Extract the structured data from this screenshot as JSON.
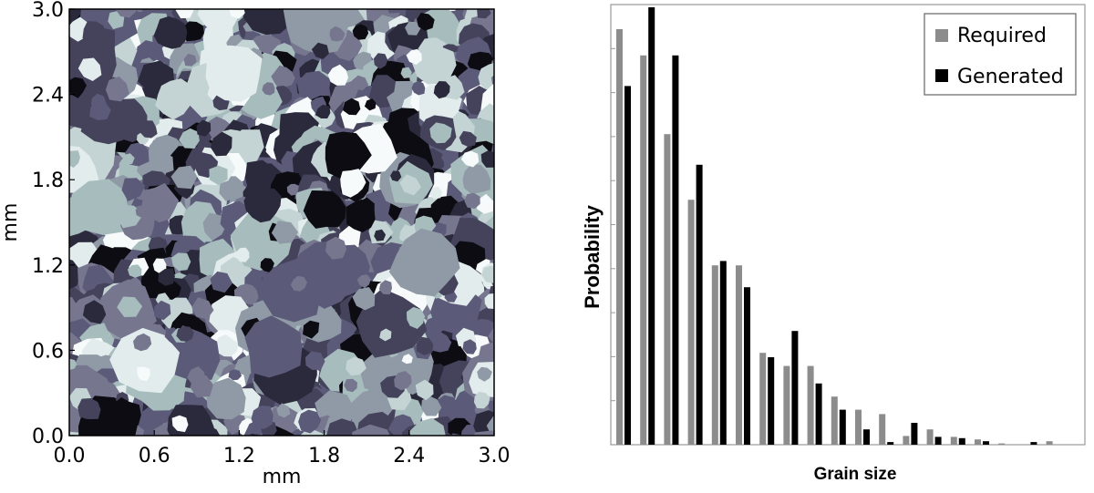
{
  "chart_data": [
    {
      "type": "heatmap",
      "description_source": "grain microstructure map",
      "xlabel": "mm",
      "ylabel": "mm",
      "xlim": [
        0.0,
        3.0
      ],
      "ylim": [
        0.0,
        3.0
      ],
      "xticks": [
        "0.0",
        "0.6",
        "1.2",
        "1.8",
        "2.4",
        "3.0"
      ],
      "yticks": [
        "0.0",
        "0.6",
        "1.2",
        "1.8",
        "2.4",
        "3.0"
      ],
      "palette": [
        "#0c0c12",
        "#2b2a3c",
        "#45435b",
        "#5b5a78",
        "#76768f",
        "#8f9aa6",
        "#a7bcbd",
        "#c4d4d4",
        "#e2ecec",
        "#f6fafa"
      ]
    },
    {
      "type": "bar",
      "xlabel": "Grain size",
      "ylabel": "Probability",
      "legend": {
        "placement": "top-right"
      },
      "series": [
        {
          "name": "Required",
          "color": "#8c8c8c",
          "values": [
            0.95,
            0.89,
            0.71,
            0.56,
            0.41,
            0.41,
            0.21,
            0.18,
            0.18,
            0.11,
            0.08,
            0.07,
            0.02,
            0.035,
            0.018,
            0.012,
            0.003,
            0.0,
            0.008
          ]
        },
        {
          "name": "Generated",
          "color": "#000000",
          "values": [
            0.82,
            1.0,
            0.89,
            0.64,
            0.42,
            0.36,
            0.2,
            0.26,
            0.14,
            0.08,
            0.035,
            0.006,
            0.05,
            0.018,
            0.015,
            0.008,
            0.0,
            0.006,
            0.0
          ]
        }
      ],
      "ylim": [
        0,
        1.0
      ]
    }
  ]
}
